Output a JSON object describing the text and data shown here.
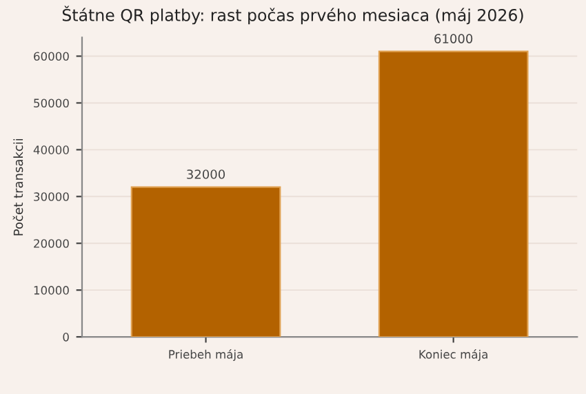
{
  "chart_data": {
    "type": "bar",
    "title": "Štátne QR platby: rast počas prvého mesiaca (máj 2026)",
    "ylabel": "Počet transakcii",
    "categories": [
      "Priebeh mája",
      "Koniec mája"
    ],
    "values": [
      32000,
      61000
    ],
    "color": "#b36200",
    "ylim": [
      0,
      64000
    ],
    "yticks": [
      0,
      10000,
      20000,
      30000,
      40000,
      50000,
      60000
    ],
    "grid": "y",
    "data_labels": true
  }
}
